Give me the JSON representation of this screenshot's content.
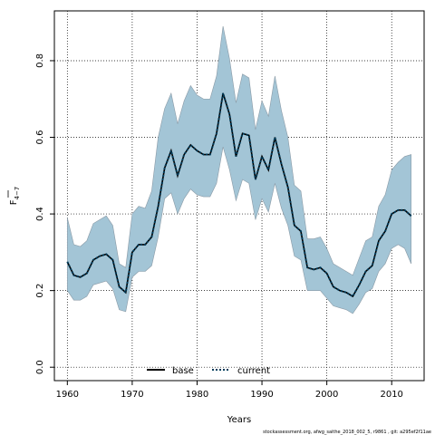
{
  "chart_data": {
    "type": "line",
    "title": "",
    "xlabel": "Years",
    "ylabel": "F",
    "ylabel_sub": "4−7",
    "xlim": [
      1958,
      2015
    ],
    "ylim": [
      -0.035,
      0.93
    ],
    "xticks": [
      1960,
      1970,
      1980,
      1990,
      2000,
      2010
    ],
    "yticks": [
      0.0,
      0.2,
      0.4,
      0.6,
      0.8
    ],
    "ytick_labels": [
      "0.0",
      "0.2",
      "0.4",
      "0.6",
      "0.8"
    ],
    "grid": true,
    "legend_position": "bottom-center",
    "x": [
      1960,
      1961,
      1962,
      1963,
      1964,
      1965,
      1966,
      1967,
      1968,
      1969,
      1970,
      1971,
      1972,
      1973,
      1974,
      1975,
      1976,
      1977,
      1978,
      1979,
      1980,
      1981,
      1982,
      1983,
      1984,
      1985,
      1986,
      1987,
      1988,
      1989,
      1990,
      1991,
      1992,
      1993,
      1994,
      1995,
      1996,
      1997,
      1998,
      1999,
      2000,
      2001,
      2002,
      2003,
      2004,
      2005,
      2006,
      2007,
      2008,
      2009,
      2010,
      2011,
      2012,
      2013
    ],
    "series": [
      {
        "name": "base",
        "color": "#000000",
        "style": "solid",
        "values": [
          0.275,
          0.24,
          0.235,
          0.245,
          0.28,
          0.29,
          0.295,
          0.28,
          0.21,
          0.195,
          0.3,
          0.32,
          0.32,
          0.34,
          0.42,
          0.52,
          0.565,
          0.5,
          0.555,
          0.58,
          0.565,
          0.555,
          0.555,
          0.61,
          0.715,
          0.66,
          0.55,
          0.61,
          0.605,
          0.49,
          0.55,
          0.515,
          0.6,
          0.53,
          0.47,
          0.37,
          0.355,
          0.26,
          0.255,
          0.26,
          0.245,
          0.21,
          0.2,
          0.195,
          0.185,
          0.215,
          0.25,
          0.265,
          0.33,
          0.355,
          0.4,
          0.41,
          0.41,
          0.395
        ]
      },
      {
        "name": "current",
        "color": "#003c5a",
        "style": "dotted",
        "values": [
          0.275,
          0.24,
          0.235,
          0.245,
          0.28,
          0.29,
          0.295,
          0.28,
          0.21,
          0.195,
          0.3,
          0.32,
          0.32,
          0.34,
          0.42,
          0.52,
          0.565,
          0.5,
          0.555,
          0.58,
          0.565,
          0.555,
          0.555,
          0.61,
          0.715,
          0.66,
          0.55,
          0.61,
          0.605,
          0.49,
          0.55,
          0.515,
          0.6,
          0.53,
          0.47,
          0.37,
          0.355,
          0.26,
          0.255,
          0.26,
          0.245,
          0.21,
          0.2,
          0.195,
          0.185,
          0.215,
          0.25,
          0.265,
          0.33,
          0.355,
          0.4,
          0.41,
          0.41,
          0.395
        ]
      }
    ],
    "band": {
      "color": "#a3c5d6",
      "edge_color": "#8a9aa6",
      "upper": [
        0.39,
        0.32,
        0.315,
        0.33,
        0.375,
        0.385,
        0.395,
        0.37,
        0.27,
        0.26,
        0.4,
        0.42,
        0.415,
        0.46,
        0.6,
        0.675,
        0.715,
        0.635,
        0.695,
        0.735,
        0.71,
        0.7,
        0.7,
        0.76,
        0.89,
        0.805,
        0.69,
        0.765,
        0.755,
        0.62,
        0.695,
        0.655,
        0.76,
        0.67,
        0.6,
        0.475,
        0.46,
        0.335,
        0.335,
        0.34,
        0.31,
        0.27,
        0.26,
        0.25,
        0.24,
        0.285,
        0.33,
        0.34,
        0.42,
        0.45,
        0.515,
        0.535,
        0.55,
        0.555
      ],
      "lower": [
        0.2,
        0.175,
        0.175,
        0.185,
        0.215,
        0.22,
        0.225,
        0.205,
        0.15,
        0.145,
        0.235,
        0.25,
        0.25,
        0.265,
        0.34,
        0.44,
        0.455,
        0.4,
        0.44,
        0.465,
        0.45,
        0.445,
        0.445,
        0.48,
        0.575,
        0.515,
        0.435,
        0.49,
        0.48,
        0.385,
        0.44,
        0.405,
        0.48,
        0.415,
        0.37,
        0.29,
        0.28,
        0.2,
        0.2,
        0.2,
        0.18,
        0.16,
        0.155,
        0.15,
        0.14,
        0.165,
        0.195,
        0.205,
        0.25,
        0.27,
        0.31,
        0.32,
        0.31,
        0.27
      ]
    }
  },
  "footer": "stockassessment.org, afwg_saithe_2018_002_5, r9861 , git: a295ef2f11ae"
}
